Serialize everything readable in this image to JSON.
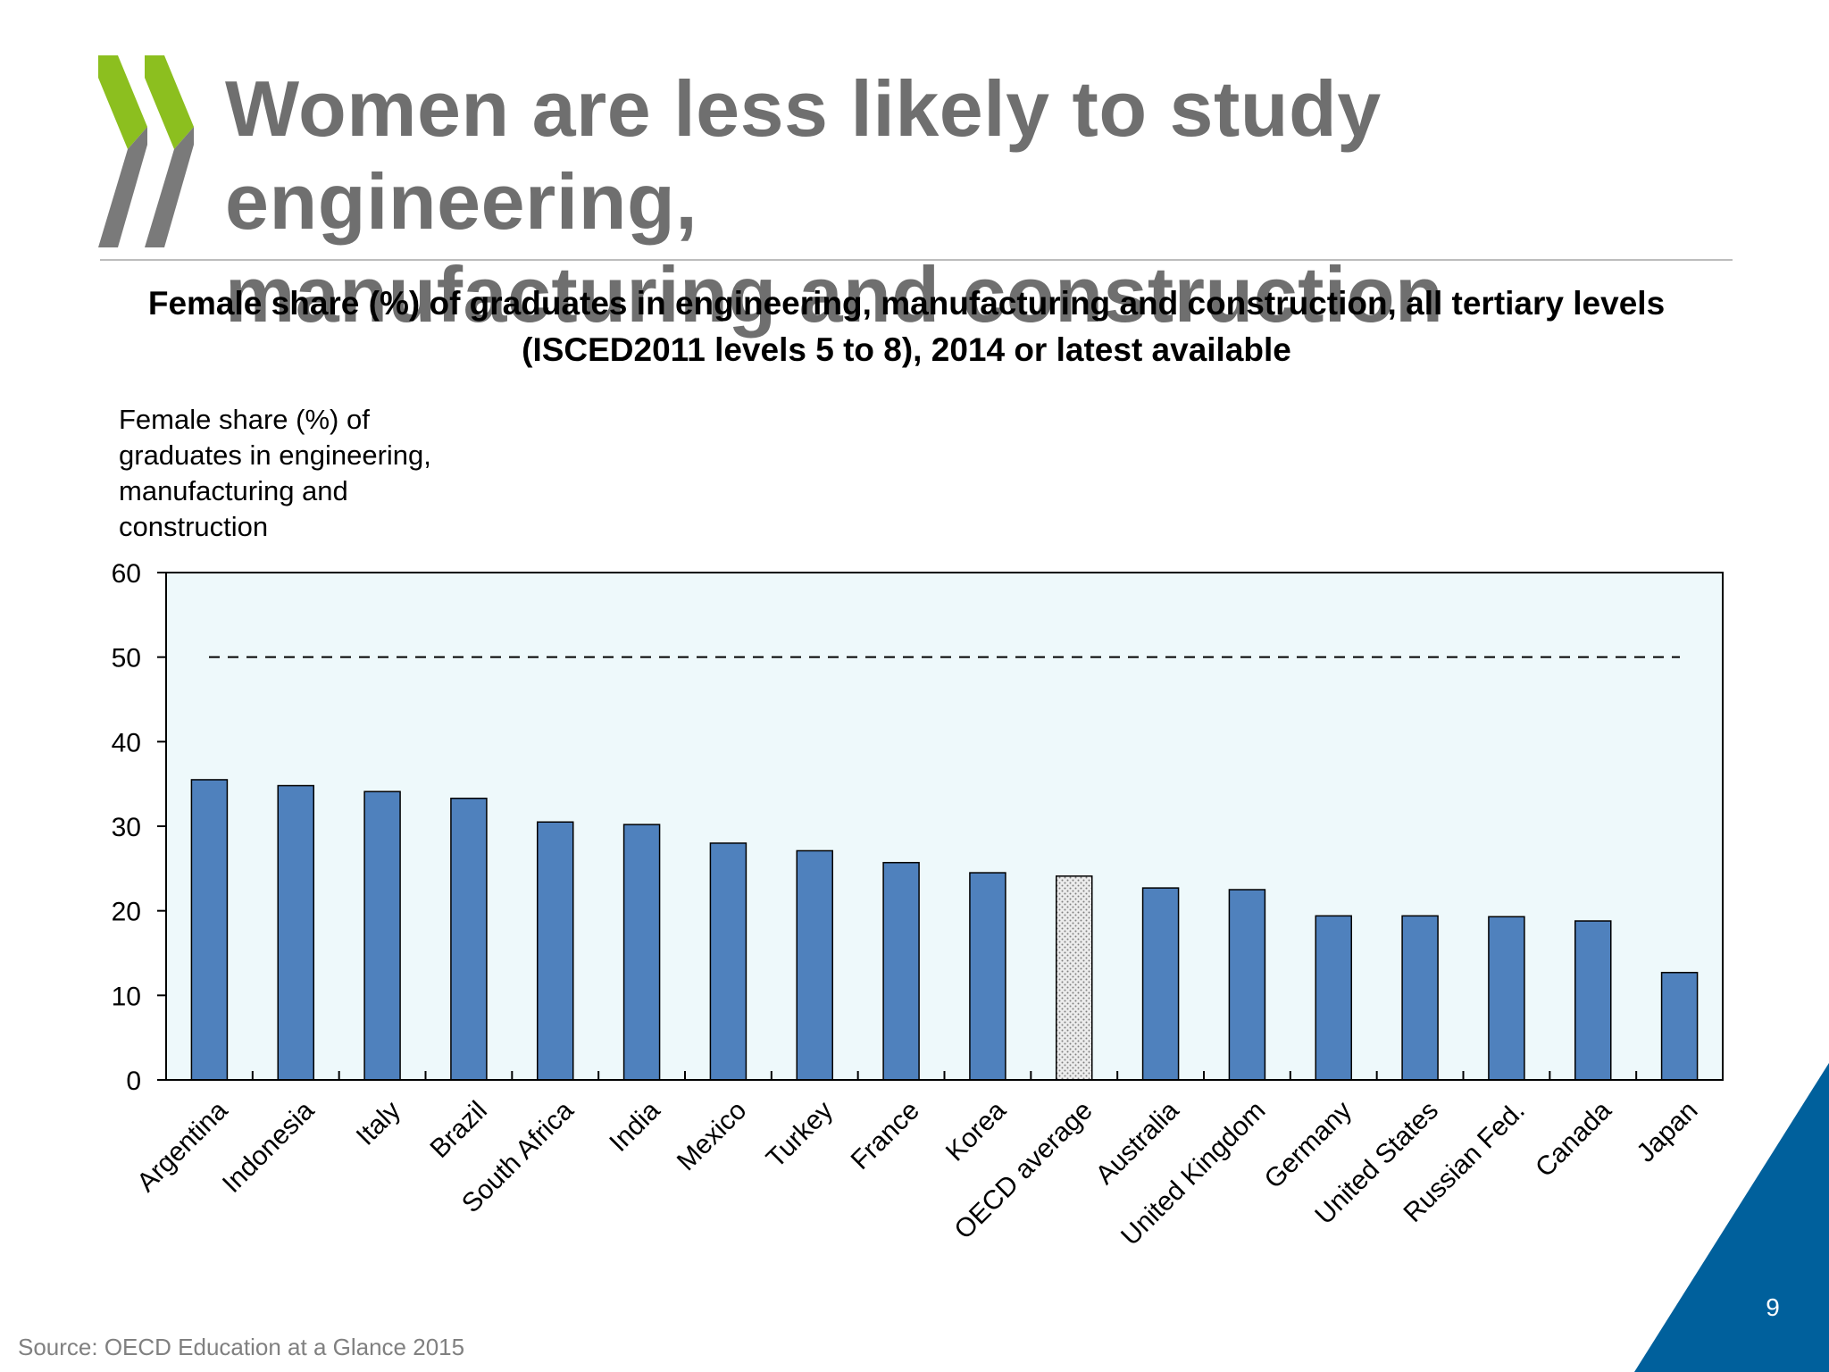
{
  "slide": {
    "title_line1": "Women are less likely to study engineering,",
    "title_line2": "manufacturing and construction",
    "page_number": "9",
    "source": "Source: OECD Education at a Glance 2015"
  },
  "colors": {
    "bar": "#4f81bd",
    "highlight_bar": "#d9d9d9",
    "plot_background": "#eef9fb",
    "logo_green": "#8cbf1f",
    "logo_grey": "#7a7a7a",
    "corner_blue": "#00609c"
  },
  "icons": {
    "logo": "oecd-chevron-logo",
    "corner": "corner-triangle-decoration"
  },
  "chart_data": {
    "type": "bar",
    "title_line1": "Female share (%) of graduates in engineering, manufacturing and construction, all tertiary levels",
    "title_line2": "(ISCED2011 levels 5 to 8), 2014 or latest available",
    "ylabel_lines": [
      "Female share (%) of",
      "graduates in engineering,",
      "manufacturing and",
      "construction"
    ],
    "xlabel": "",
    "categories": [
      "Argentina",
      "Indonesia",
      "Italy",
      "Brazil",
      "South Africa",
      "India",
      "Mexico",
      "Turkey",
      "France",
      "Korea",
      "OECD average",
      "Australia",
      "United Kingdom",
      "Germany",
      "United States",
      "Russian Fed.",
      "Canada",
      "Japan"
    ],
    "values": [
      35.5,
      34.8,
      34.1,
      33.3,
      30.5,
      30.2,
      28.0,
      27.1,
      25.7,
      24.5,
      24.1,
      22.7,
      22.5,
      19.4,
      19.4,
      19.3,
      18.8,
      12.7
    ],
    "highlight_category": "OECD average",
    "reference_line": {
      "value": 50,
      "style": "dashed"
    },
    "ylim": [
      0,
      60
    ],
    "yticks": [
      0,
      10,
      20,
      30,
      40,
      50,
      60
    ],
    "grid": false,
    "legend": "none"
  }
}
